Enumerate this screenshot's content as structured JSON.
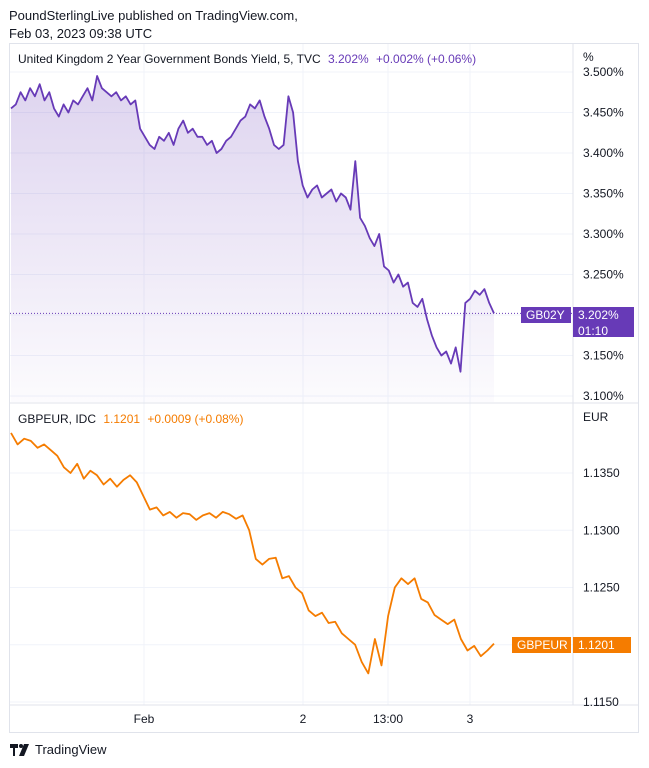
{
  "header": {
    "publisher": "PoundSterlingLive published on TradingView.com,",
    "timestamp": "Feb 03, 2023 09:38 UTC"
  },
  "footer": {
    "brand": "TradingView",
    "brand_icon": "tradingview-logo-icon"
  },
  "colors": {
    "purple": "#673ab7",
    "orange": "#f57c00",
    "grid": "#f0f3fa",
    "border": "#e0e3eb"
  },
  "chart_data": [
    {
      "type": "area",
      "legend": {
        "name": "United Kingdom 2 Year Government Bonds Yield, 5, TVC",
        "last": "3.202%",
        "change": "+0.002% (+0.06%)"
      },
      "unit": "%",
      "y_ticks": [
        "3.500%",
        "3.450%",
        "3.400%",
        "3.350%",
        "3.300%",
        "3.250%",
        "3.200%",
        "3.150%",
        "3.100%"
      ],
      "ylim": [
        3.1,
        3.5
      ],
      "price_tag": {
        "symbol": "GB02Y",
        "value": "3.202%",
        "countdown": "01:10"
      },
      "series": [
        {
          "name": "GB02Y",
          "values": [
            3.455,
            3.46,
            3.475,
            3.465,
            3.48,
            3.47,
            3.485,
            3.465,
            3.475,
            3.455,
            3.445,
            3.46,
            3.45,
            3.465,
            3.46,
            3.47,
            3.48,
            3.465,
            3.495,
            3.48,
            3.475,
            3.47,
            3.475,
            3.465,
            3.47,
            3.46,
            3.465,
            3.43,
            3.42,
            3.41,
            3.405,
            3.42,
            3.415,
            3.425,
            3.41,
            3.43,
            3.44,
            3.425,
            3.43,
            3.42,
            3.42,
            3.41,
            3.415,
            3.4,
            3.405,
            3.415,
            3.42,
            3.43,
            3.44,
            3.445,
            3.46,
            3.455,
            3.465,
            3.445,
            3.43,
            3.41,
            3.405,
            3.41,
            3.47,
            3.45,
            3.39,
            3.36,
            3.345,
            3.355,
            3.36,
            3.345,
            3.35,
            3.355,
            3.34,
            3.35,
            3.345,
            3.33,
            3.39,
            3.32,
            3.31,
            3.295,
            3.285,
            3.3,
            3.26,
            3.255,
            3.24,
            3.25,
            3.235,
            3.24,
            3.215,
            3.21,
            3.22,
            3.195,
            3.175,
            3.16,
            3.15,
            3.155,
            3.14,
            3.16,
            3.13,
            3.215,
            3.22,
            3.23,
            3.225,
            3.232,
            3.215,
            3.202
          ]
        }
      ]
    },
    {
      "type": "line",
      "legend": {
        "name": "GBPEUR, IDC",
        "last": "1.1201",
        "change": "+0.0009 (+0.08%)"
      },
      "unit": "EUR",
      "y_ticks": [
        "1.1350",
        "1.1300",
        "1.1250",
        "1.1200",
        "1.1150"
      ],
      "ylim": [
        1.115,
        1.139
      ],
      "price_tag": {
        "symbol": "GBPEUR",
        "value": "1.1201"
      },
      "series": [
        {
          "name": "GBPEUR",
          "values": [
            1.1385,
            1.1375,
            1.138,
            1.1378,
            1.1372,
            1.1375,
            1.137,
            1.1365,
            1.1355,
            1.135,
            1.1358,
            1.1345,
            1.1352,
            1.1348,
            1.134,
            1.1345,
            1.1338,
            1.1344,
            1.1348,
            1.1342,
            1.133,
            1.1318,
            1.132,
            1.1313,
            1.1316,
            1.1311,
            1.1315,
            1.1314,
            1.1309,
            1.1313,
            1.1315,
            1.1311,
            1.1316,
            1.1314,
            1.131,
            1.1313,
            1.13,
            1.1275,
            1.127,
            1.1275,
            1.1276,
            1.1258,
            1.126,
            1.125,
            1.1245,
            1.123,
            1.1225,
            1.1228,
            1.1219,
            1.122,
            1.121,
            1.1205,
            1.12,
            1.1185,
            1.1175,
            1.1205,
            1.1182,
            1.1225,
            1.125,
            1.1258,
            1.1253,
            1.1258,
            1.124,
            1.1237,
            1.1226,
            1.1222,
            1.1218,
            1.1222,
            1.1205,
            1.1195,
            1.1199,
            1.119,
            1.1195,
            1.1201
          ]
        }
      ]
    }
  ],
  "x_ticks": [
    "Feb",
    "2",
    "13:00",
    "3"
  ]
}
